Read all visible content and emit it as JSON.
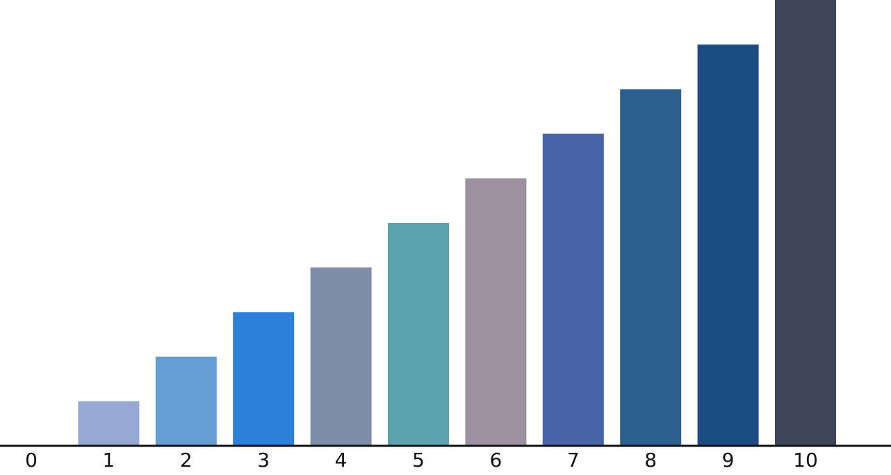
{
  "chart_data": {
    "type": "bar",
    "title": "",
    "xlabel": "",
    "ylabel": "",
    "x_ticks": [
      "0",
      "1",
      "2",
      "3",
      "4",
      "5",
      "6",
      "7",
      "8",
      "9",
      "10"
    ],
    "categories": [
      "1",
      "2",
      "3",
      "4",
      "5",
      "6",
      "7",
      "8",
      "9",
      "10"
    ],
    "values": [
      1,
      2,
      3,
      4,
      5,
      6,
      7,
      8,
      9,
      10
    ],
    "colors": [
      "#98a8d4",
      "#649ed2",
      "#2d80d8",
      "#7f8ea8",
      "#5ca3b0",
      "#9d91a1",
      "#4963a8",
      "#2c5f8d",
      "#1b4c82",
      "#3c4658"
    ],
    "ylim": [
      0,
      10
    ],
    "grid": false,
    "legend": "none"
  }
}
